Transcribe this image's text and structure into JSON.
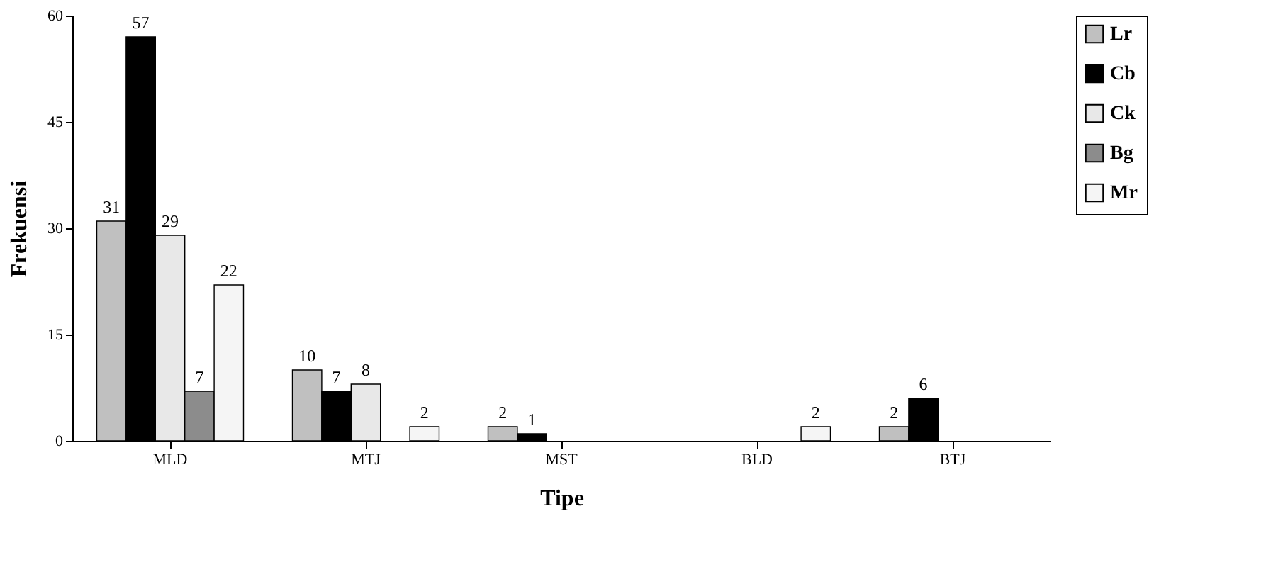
{
  "chart_data": {
    "type": "bar",
    "xlabel": "Tipe",
    "ylabel": "Frekuensi",
    "categories": [
      "MLD",
      "MTJ",
      "MST",
      "BLD",
      "BTJ"
    ],
    "series": [
      {
        "name": "Lr",
        "color": "#c0c0c0",
        "values": [
          31,
          10,
          2,
          null,
          2
        ]
      },
      {
        "name": "Cb",
        "color": "#000000",
        "values": [
          57,
          7,
          1,
          null,
          6
        ]
      },
      {
        "name": "Ck",
        "color": "#e8e8e8",
        "values": [
          29,
          8,
          null,
          null,
          null
        ]
      },
      {
        "name": "Bg",
        "color": "#8c8c8c",
        "values": [
          7,
          null,
          null,
          null,
          null
        ]
      },
      {
        "name": "Mr",
        "color": "#f5f5f5",
        "values": [
          22,
          2,
          null,
          2,
          null
        ]
      }
    ],
    "ylim": [
      0,
      60
    ],
    "yticks": [
      0,
      15,
      30,
      45,
      60
    ],
    "grid": false,
    "legend": "right",
    "data_labels": true
  }
}
